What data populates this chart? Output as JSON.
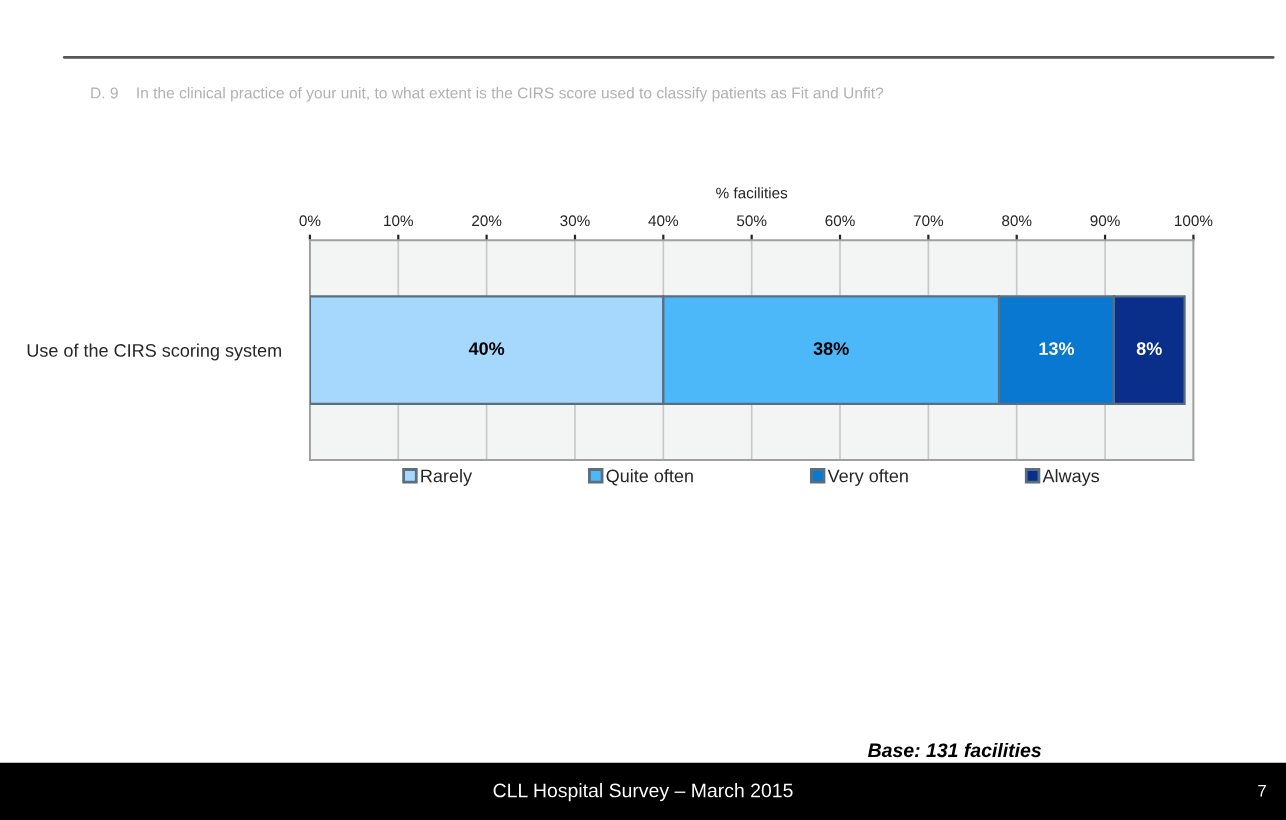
{
  "chart_data": {
    "type": "bar",
    "orientation": "horizontal",
    "stacked": true,
    "title": "D. 9    In the clinical practice of your unit, to what extent is the CIRS score used to classify patients as Fit and Unfit?",
    "xlabel": "% facilities",
    "categories": [
      "Use of the CIRS scoring system"
    ],
    "series": [
      {
        "name": "Rarely",
        "color": "#a6d8fd",
        "values": [
          40
        ],
        "value_labels": [
          "40%"
        ]
      },
      {
        "name": "Quite often",
        "color": "#4cb8f9",
        "values": [
          38
        ],
        "value_labels": [
          "38%"
        ]
      },
      {
        "name": "Very often",
        "color": "#0878d0",
        "values": [
          13
        ],
        "value_labels": [
          "13%"
        ]
      },
      {
        "name": "Always",
        "color": "#0a2f8a",
        "values": [
          8
        ],
        "value_labels": [
          "8%"
        ]
      }
    ],
    "xlim": [
      0,
      100
    ],
    "xticks": [
      {
        "value": 0,
        "label": "0%"
      },
      {
        "value": 10,
        "label": "10%"
      },
      {
        "value": 20,
        "label": "20%"
      },
      {
        "value": 30,
        "label": "30%"
      },
      {
        "value": 40,
        "label": "40%"
      },
      {
        "value": 50,
        "label": "50%"
      },
      {
        "value": 60,
        "label": "60%"
      },
      {
        "value": 70,
        "label": "70%"
      },
      {
        "value": 80,
        "label": "80%"
      },
      {
        "value": 90,
        "label": "90%"
      },
      {
        "value": 100,
        "label": "100%"
      }
    ],
    "grid": "x",
    "legend": "bottom",
    "annotations": [
      "Base: 131 facilities",
      "CLL Hospital Survey – March 2015",
      "7"
    ]
  }
}
